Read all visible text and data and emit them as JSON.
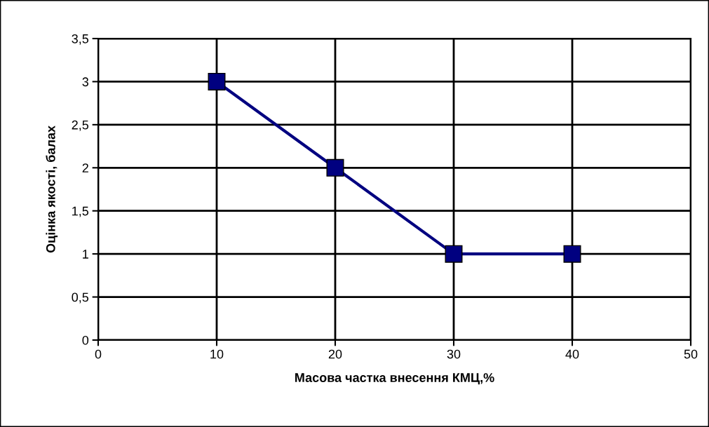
{
  "chart_data": {
    "type": "line",
    "xlabel": "Масова частка внесення КМЦ,%",
    "ylabel": "Оцінка якості, балах",
    "x": [
      10,
      20,
      30,
      40
    ],
    "series": [
      {
        "color": "#000080",
        "values": [
          3,
          2,
          1,
          1
        ]
      }
    ],
    "xlim": [
      0,
      50
    ],
    "xticks": [
      0,
      10,
      20,
      30,
      40,
      50
    ],
    "ylim": [
      0,
      3.5
    ],
    "yticks": [
      0,
      {
        "value": 0.5,
        "label": "0,5"
      },
      1,
      {
        "value": 1.5,
        "label": "1,5"
      },
      2,
      {
        "value": 2.5,
        "label": "2,5"
      },
      3,
      {
        "value": 3.5,
        "label": "3,5"
      }
    ],
    "grid": true,
    "marker": "square",
    "line_style": "solid"
  }
}
